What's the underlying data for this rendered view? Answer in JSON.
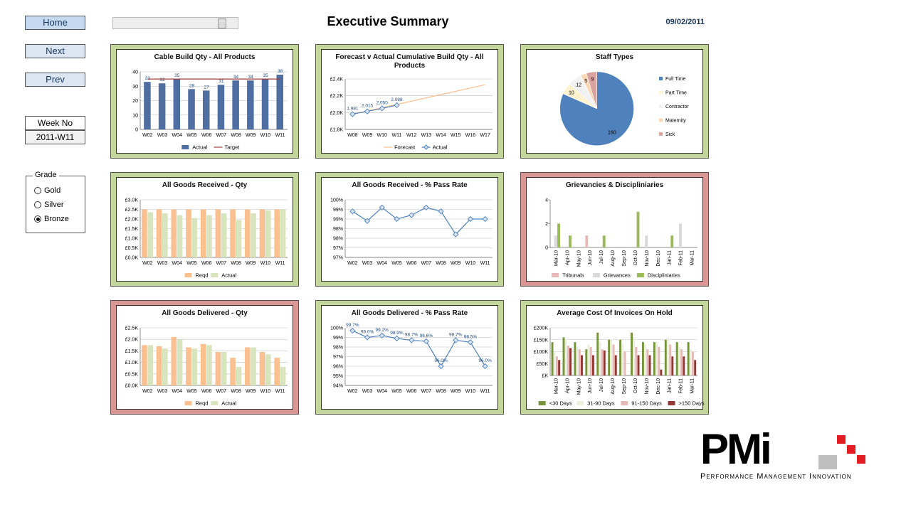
{
  "toolbar": {
    "buttons": [
      "Home",
      "Next",
      "Prev"
    ],
    "week_label": "Week No",
    "week_value": "2011-W11"
  },
  "grade": {
    "title": "Grade",
    "options": [
      "Gold",
      "Silver",
      "Bronze"
    ],
    "selected": 2
  },
  "header": {
    "title": "Executive Summary",
    "date": "09/02/2011"
  },
  "logo": {
    "name": "PMi",
    "tagline": "Performance Management Innovation"
  },
  "chart_data": [
    {
      "type": "bar",
      "title": "Cable Build Qty - All Products",
      "frame_color": "#c4d79b",
      "grid": true,
      "categories": [
        "W02",
        "W03",
        "W04",
        "W05",
        "W06",
        "W07",
        "W08",
        "W09",
        "W10",
        "W11"
      ],
      "ylim": [
        0,
        40
      ],
      "yticks": [
        0,
        10,
        20,
        30,
        40
      ],
      "series": [
        {
          "name": "Actual",
          "type": "bar",
          "color": "#4f6fa3",
          "data_labels": true,
          "values": [
            33,
            32,
            35,
            28,
            27,
            31,
            34,
            34,
            35,
            38
          ]
        },
        {
          "name": "Target",
          "type": "line",
          "color": "#a0403c",
          "values": [
            35,
            35,
            35,
            35,
            35,
            35,
            35,
            35,
            35,
            35
          ]
        }
      ]
    },
    {
      "type": "line",
      "title": "Forecast v Actual Cumulative Build Qty - All Products",
      "frame_color": "#c4d79b",
      "grid": true,
      "categories": [
        "W08",
        "W09",
        "W10",
        "W11",
        "W12",
        "W13",
        "W14",
        "W15",
        "W16",
        "W17"
      ],
      "ylim": [
        1800,
        2400
      ],
      "yticks": [
        {
          "value": 1800,
          "label": "£1.8K"
        },
        {
          "value": 2000,
          "label": "£2.0K"
        },
        {
          "value": 2200,
          "label": "£2.2K"
        },
        {
          "value": 2400,
          "label": "£2.4K"
        }
      ],
      "series": [
        {
          "name": "Forecast",
          "type": "line",
          "color": "#fac090",
          "values": [
            1981,
            2020,
            2058,
            2097,
            2136,
            2175,
            2214,
            2253,
            2292,
            2331
          ]
        },
        {
          "name": "Actual",
          "type": "line",
          "color": "#4f81bd",
          "markers": true,
          "data_labels": true,
          "values": [
            1981,
            2015,
            2050,
            2088,
            null,
            null,
            null,
            null,
            null,
            null
          ],
          "value_labels": [
            "1,981",
            "2,015",
            "2,050",
            "2,088",
            null,
            null,
            null,
            null,
            null,
            null
          ]
        }
      ]
    },
    {
      "type": "pie",
      "title": "Staff Types",
      "frame_color": "#c4d79b",
      "categories": [
        "Full Time",
        "Part Time",
        "Contractor",
        "Maternity",
        "Sick"
      ],
      "values": [
        160,
        10,
        12,
        5,
        9
      ],
      "colors": [
        "#4f81bd",
        "#fdf3d0",
        "#f2f2f2",
        "#fcd5b4",
        "#d9a3a0"
      ]
    },
    {
      "type": "bar",
      "title": "All Goods Received  - Qty",
      "frame_color": "#c4d79b",
      "grid": true,
      "categories": [
        "W02",
        "W03",
        "W04",
        "W05",
        "W06",
        "W07",
        "W08",
        "W09",
        "W10",
        "W11"
      ],
      "ylim": [
        0,
        3000
      ],
      "yticks": [
        {
          "value": 0,
          "label": "£0.0K"
        },
        {
          "value": 500,
          "label": "£0.5K"
        },
        {
          "value": 1000,
          "label": "£1.0K"
        },
        {
          "value": 1500,
          "label": "£1.5K"
        },
        {
          "value": 2000,
          "label": "£2.0K"
        },
        {
          "value": 2500,
          "label": "£2.5K"
        },
        {
          "value": 3000,
          "label": "£3.0K"
        }
      ],
      "series": [
        {
          "name": "Reqd",
          "type": "bar",
          "color": "#fac090",
          "values": [
            2500,
            2500,
            2500,
            2500,
            2500,
            2500,
            2500,
            2500,
            2500,
            2500
          ]
        },
        {
          "name": "Actual",
          "type": "bar",
          "color": "#d7e4bd",
          "values": [
            2350,
            2300,
            2200,
            2050,
            2200,
            2300,
            1950,
            2300,
            2450,
            2500
          ]
        }
      ]
    },
    {
      "type": "line",
      "title": "All Goods Received  - % Pass Rate",
      "frame_color": "#c4d79b",
      "grid": true,
      "categories": [
        "W02",
        "W03",
        "W04",
        "W05",
        "W06",
        "W07",
        "W08",
        "W09",
        "W10",
        "W11"
      ],
      "ylim": [
        97,
        100
      ],
      "yticks": [
        {
          "value": 97,
          "label": "97%"
        },
        {
          "value": 97.5,
          "label": "97%"
        },
        {
          "value": 98,
          "label": "98%"
        },
        {
          "value": 98.5,
          "label": "98%"
        },
        {
          "value": 99,
          "label": "99%"
        },
        {
          "value": 99.5,
          "label": "99%"
        },
        {
          "value": 100,
          "label": "100%"
        }
      ],
      "series": [
        {
          "name": "Pass Rate",
          "type": "line",
          "color": "#4f81bd",
          "markers": true,
          "legend": false,
          "values": [
            99.4,
            98.9,
            99.6,
            99.0,
            99.2,
            99.6,
            99.4,
            98.2,
            99.0,
            99.0
          ]
        }
      ]
    },
    {
      "type": "bar",
      "title": "Grievancies & Discipliniaries",
      "frame_color": "#d99694",
      "grid": false,
      "categories": [
        "Mar-10",
        "Apr-10",
        "May-10",
        "Jun-10",
        "Jul-10",
        "Aug-10",
        "Sep-10",
        "Oct-10",
        "Nov-10",
        "Dec-10",
        "Jan-11",
        "Feb-11",
        "Mar-11"
      ],
      "ylim": [
        0,
        4
      ],
      "yticks": [
        0,
        2,
        4
      ],
      "series": [
        {
          "name": "Tribunals",
          "type": "bar",
          "color": "#e6b9b8",
          "values": [
            0,
            0,
            0,
            1,
            0,
            0,
            0,
            0,
            0,
            0,
            0,
            0,
            0
          ]
        },
        {
          "name": "Grievances",
          "type": "bar",
          "color": "#d9d9d9",
          "values": [
            1,
            0,
            0,
            0,
            0,
            0,
            0,
            0,
            1,
            0,
            0,
            2,
            0
          ]
        },
        {
          "name": "Discipliniaries",
          "type": "bar",
          "color": "#9bbb59",
          "values": [
            2,
            1,
            0,
            0,
            1,
            0,
            0,
            3,
            0,
            0,
            1,
            0,
            0
          ]
        }
      ]
    },
    {
      "type": "bar",
      "title": "All Goods Delivered - Qty",
      "frame_color": "#d99694",
      "grid": true,
      "categories": [
        "W02",
        "W03",
        "W04",
        "W05",
        "W06",
        "W07",
        "W08",
        "W09",
        "W10",
        "W11"
      ],
      "ylim": [
        0,
        2500
      ],
      "yticks": [
        {
          "value": 0,
          "label": "£0.0K"
        },
        {
          "value": 500,
          "label": "£0.5K"
        },
        {
          "value": 1000,
          "label": "£1.0K"
        },
        {
          "value": 1500,
          "label": "£1.5K"
        },
        {
          "value": 2000,
          "label": "£2.0K"
        },
        {
          "value": 2500,
          "label": "£2.5K"
        }
      ],
      "series": [
        {
          "name": "Reqd",
          "type": "bar",
          "color": "#fac090",
          "values": [
            1750,
            1700,
            2100,
            1650,
            1800,
            1450,
            1200,
            1650,
            1450,
            1200
          ]
        },
        {
          "name": "Actual",
          "type": "bar",
          "color": "#d7e4bd",
          "values": [
            1750,
            1600,
            2000,
            1600,
            1750,
            1450,
            800,
            1650,
            1350,
            800
          ]
        }
      ]
    },
    {
      "type": "line",
      "title": "All Goods Delivered - % Pass Rate",
      "frame_color": "#c4d79b",
      "grid": true,
      "categories": [
        "W02",
        "W03",
        "W04",
        "W05",
        "W06",
        "W07",
        "W08",
        "W09",
        "W10",
        "W11"
      ],
      "ylim": [
        94,
        100
      ],
      "yticks": [
        {
          "value": 94,
          "label": "94%"
        },
        {
          "value": 95,
          "label": "95%"
        },
        {
          "value": 96,
          "label": "96%"
        },
        {
          "value": 97,
          "label": "97%"
        },
        {
          "value": 98,
          "label": "98%"
        },
        {
          "value": 99,
          "label": "99%"
        },
        {
          "value": 100,
          "label": "100%"
        }
      ],
      "series": [
        {
          "name": "Pass Rate",
          "type": "line",
          "color": "#4f81bd",
          "markers": true,
          "legend": false,
          "data_labels": true,
          "values": [
            99.7,
            99.0,
            99.2,
            98.9,
            98.7,
            98.6,
            96.0,
            98.7,
            98.5,
            96.0
          ],
          "value_labels": [
            "99.7%",
            "99.0%",
            "99.2%",
            "98.9%",
            "98.7%",
            "98.6%",
            "96.0%",
            "98.7%",
            "98.5%",
            "96.0%"
          ]
        }
      ]
    },
    {
      "type": "bar",
      "title": "Average Cost Of Invoices On Hold",
      "frame_color": "#c4d79b",
      "grid": true,
      "categories": [
        "Mar-10",
        "Apr-10",
        "May-10",
        "Jun-10",
        "Jul-10",
        "Aug-10",
        "Sep-10",
        "Oct-10",
        "Nov-10",
        "Dec-10",
        "Jan-11",
        "Feb-11",
        "Mar-11"
      ],
      "ylim": [
        0,
        200000
      ],
      "yticks": [
        {
          "value": 0,
          "label": "£K"
        },
        {
          "value": 50000,
          "label": "£50K"
        },
        {
          "value": 100000,
          "label": "£100K"
        },
        {
          "value": 150000,
          "label": "£150K"
        },
        {
          "value": 200000,
          "label": "£200K"
        }
      ],
      "series": [
        {
          "name": "<30 Days",
          "type": "bar",
          "color": "#77933c",
          "values": [
            140000,
            160000,
            140000,
            110000,
            180000,
            150000,
            150000,
            180000,
            140000,
            140000,
            150000,
            140000,
            140000
          ]
        },
        {
          "name": "31-90 Days",
          "type": "bar",
          "color": "#ebf1de",
          "values": [
            100000,
            150000,
            120000,
            130000,
            140000,
            150000,
            130000,
            160000,
            130000,
            140000,
            160000,
            120000,
            110000
          ]
        },
        {
          "name": "91-150 Days",
          "type": "bar",
          "color": "#e6b9b8",
          "values": [
            80000,
            125000,
            110000,
            120000,
            110000,
            130000,
            100000,
            120000,
            110000,
            120000,
            130000,
            110000,
            100000
          ]
        },
        {
          "name": ">150 Days",
          "type": "bar",
          "color": "#953735",
          "values": [
            65000,
            115000,
            85000,
            85000,
            105000,
            85000,
            0,
            85000,
            85000,
            25000,
            80000,
            80000,
            65000
          ]
        }
      ]
    }
  ]
}
